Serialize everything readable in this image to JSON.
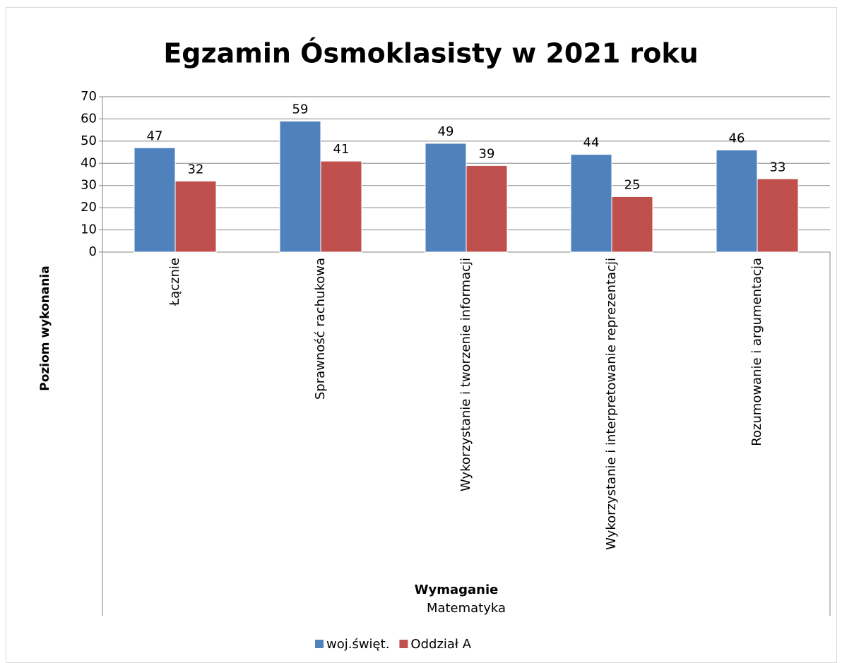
{
  "chart_data": {
    "type": "bar",
    "title": "Egzamin Ósmoklasisty w 2021 roku",
    "y_label": "Poziom wykonania",
    "x_label": "Wymaganie",
    "x_group_label": "Matematyka",
    "categories": [
      "Łącznie",
      "Sprawność rachukowa",
      "Wykorzystanie i tworzenie informacji",
      "Wykorzystanie i interpretowanie reprezentacji",
      "Rozumowanie i argumentacja"
    ],
    "series": [
      {
        "name": "woj.święt.",
        "color": "#4f81bd",
        "values": [
          47,
          59,
          49,
          44,
          46
        ]
      },
      {
        "name": "Oddział A",
        "color": "#c0504d",
        "values": [
          32,
          41,
          39,
          25,
          33
        ]
      }
    ],
    "ylim": [
      0,
      70
    ],
    "yticks": [
      0,
      10,
      20,
      30,
      40,
      50,
      60,
      70
    ],
    "grid": true,
    "legend": "bottom"
  }
}
